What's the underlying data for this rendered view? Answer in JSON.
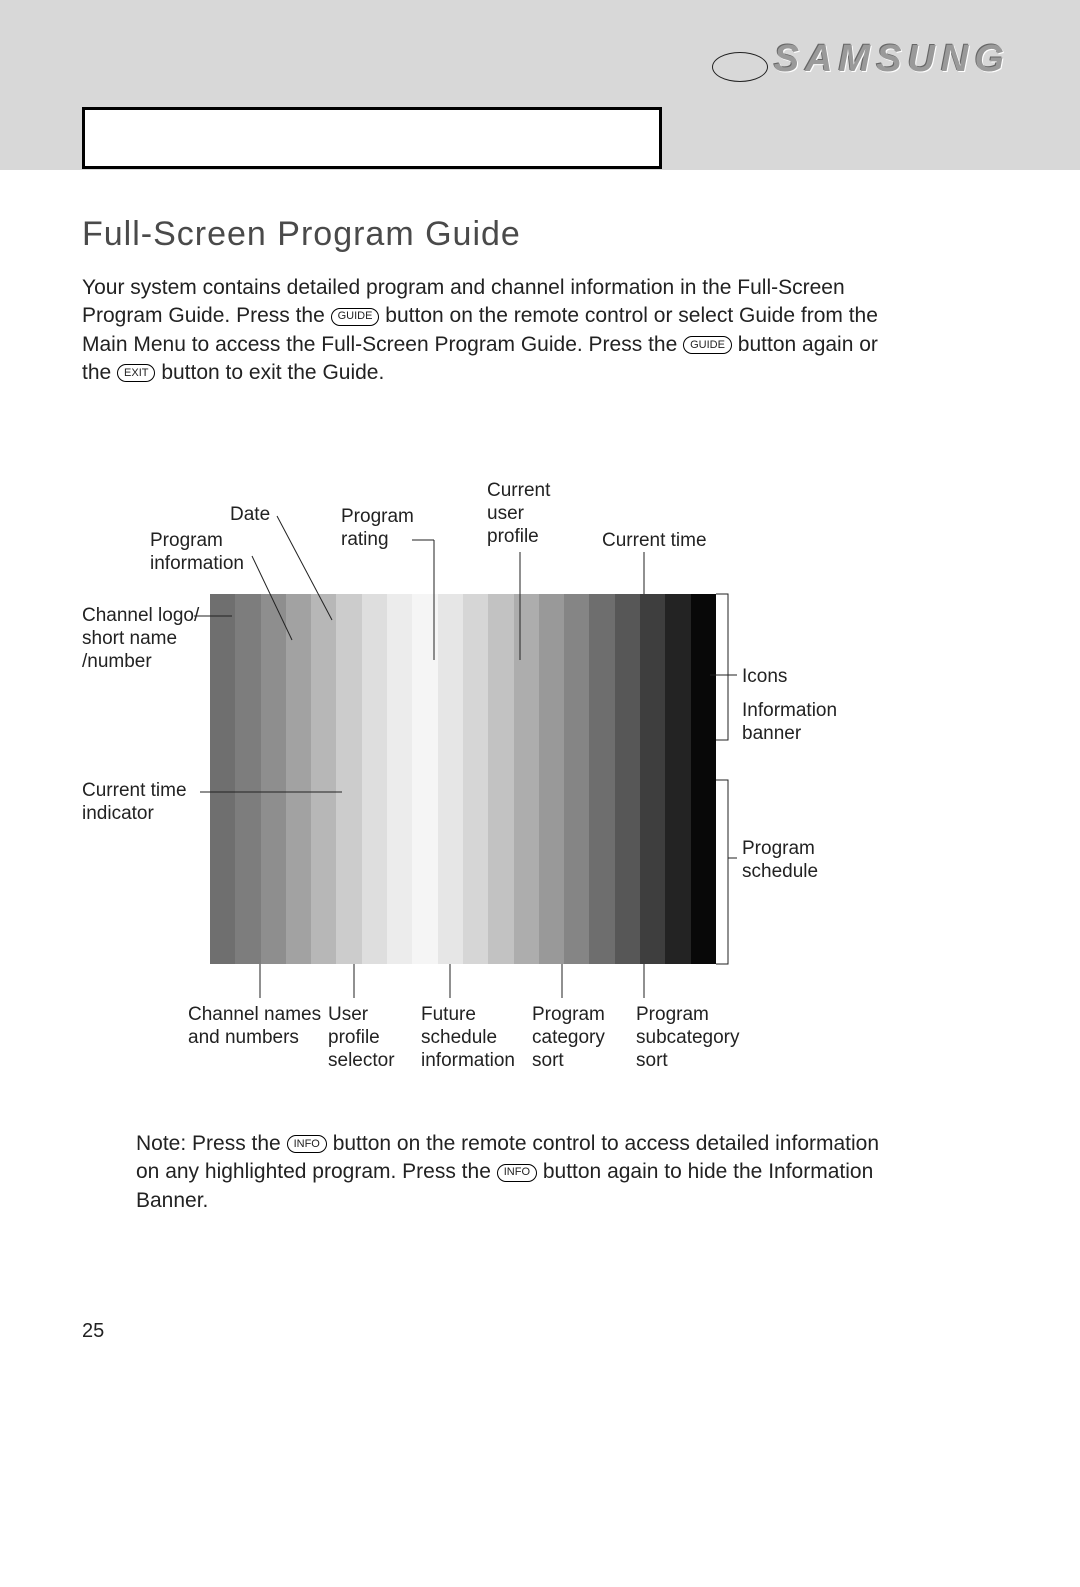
{
  "logo": "SAMSUNG",
  "section_title": "Full-Screen Program Guide",
  "intro": {
    "p1a": "Your system contains detailed program and channel information in the Full-Screen Program Guide. Press the ",
    "p1b": " button on the remote control or select Guide from the Main Menu to access the Full-Screen Program Guide. Press the ",
    "p1c": " button again or the ",
    "p1d": " button to exit the Guide.",
    "btn_guide": "GUIDE",
    "btn_exit": "EXIT"
  },
  "labels": {
    "date": "Date",
    "program_info": "Program information",
    "channel_logo": "Channel logo/ short name /number",
    "current_time_indicator": "Current time indicator",
    "program_rating": "Program rating",
    "current_user_profile": "Current user profile",
    "current_time": "Current time",
    "icons": "Icons",
    "information_banner": "Information banner",
    "program_schedule": "Program schedule",
    "channel_names_numbers": "Channel names and numbers",
    "user_profile_selector": "User profile selector",
    "future_schedule_info": "Future schedule information",
    "program_category_sort": "Program category sort",
    "program_subcategory_sort": "Program subcategory sort"
  },
  "gradient": {
    "colors": [
      "#6f6f6f",
      "#7d7d7d",
      "#8e8e8e",
      "#a2a2a2",
      "#b7b7b7",
      "#cccccc",
      "#dedede",
      "#ececec",
      "#f5f5f5",
      "#e6e6e6",
      "#d6d6d6",
      "#c2c2c2",
      "#adadad",
      "#999999",
      "#858585",
      "#6e6e6e",
      "#575757",
      "#3e3e3e",
      "#232323",
      "#080808"
    ]
  },
  "note": {
    "a": "Note: Press the ",
    "b": " button on the remote control to access detailed information on any highlighted program. Press the ",
    "c": " button again to hide the Information Banner.",
    "btn_info": "INFO"
  },
  "page_number": "25",
  "line_color": "#222222",
  "label_fontsize": 19
}
